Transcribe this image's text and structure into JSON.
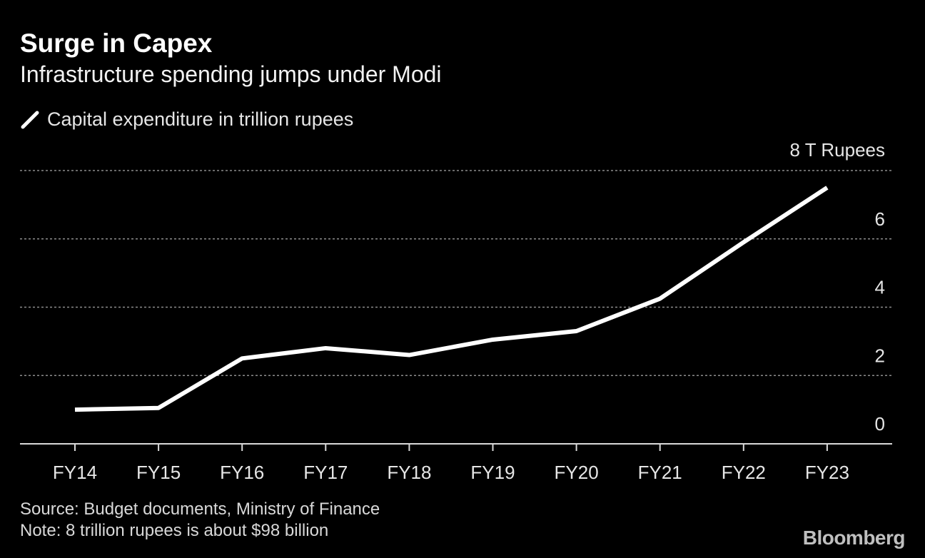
{
  "title": "Surge in Capex",
  "subtitle": "Infrastructure spending jumps under Modi",
  "legend": {
    "label": "Capital expenditure in trillion rupees",
    "icon": "line-swatch-icon"
  },
  "source": "Source: Budget documents, Ministry of Finance",
  "note": "Note: 8 trillion rupees is about $98 billion",
  "brand": "Bloomberg",
  "colors": {
    "background": "#000000",
    "line": "#ffffff",
    "grid": "#8c8c8c",
    "text": "#e6e6e6"
  },
  "chart_data": {
    "type": "line",
    "title": "Surge in Capex",
    "subtitle": "Infrastructure spending jumps under Modi",
    "xlabel": "",
    "ylabel": "T Rupees",
    "categories": [
      "FY14",
      "FY15",
      "FY16",
      "FY17",
      "FY18",
      "FY19",
      "FY20",
      "FY21",
      "FY22",
      "FY23"
    ],
    "series": [
      {
        "name": "Capital expenditure in trillion rupees",
        "values": [
          1.0,
          1.05,
          2.5,
          2.8,
          2.6,
          3.05,
          3.3,
          4.25,
          5.9,
          7.5
        ]
      }
    ],
    "ylim": [
      0,
      8
    ],
    "yticks": [
      0,
      2,
      4,
      6,
      8
    ],
    "ytick_labels": [
      "0",
      "2",
      "4",
      "6",
      "8 T Rupees"
    ],
    "grid": true,
    "axis_side": "right"
  }
}
